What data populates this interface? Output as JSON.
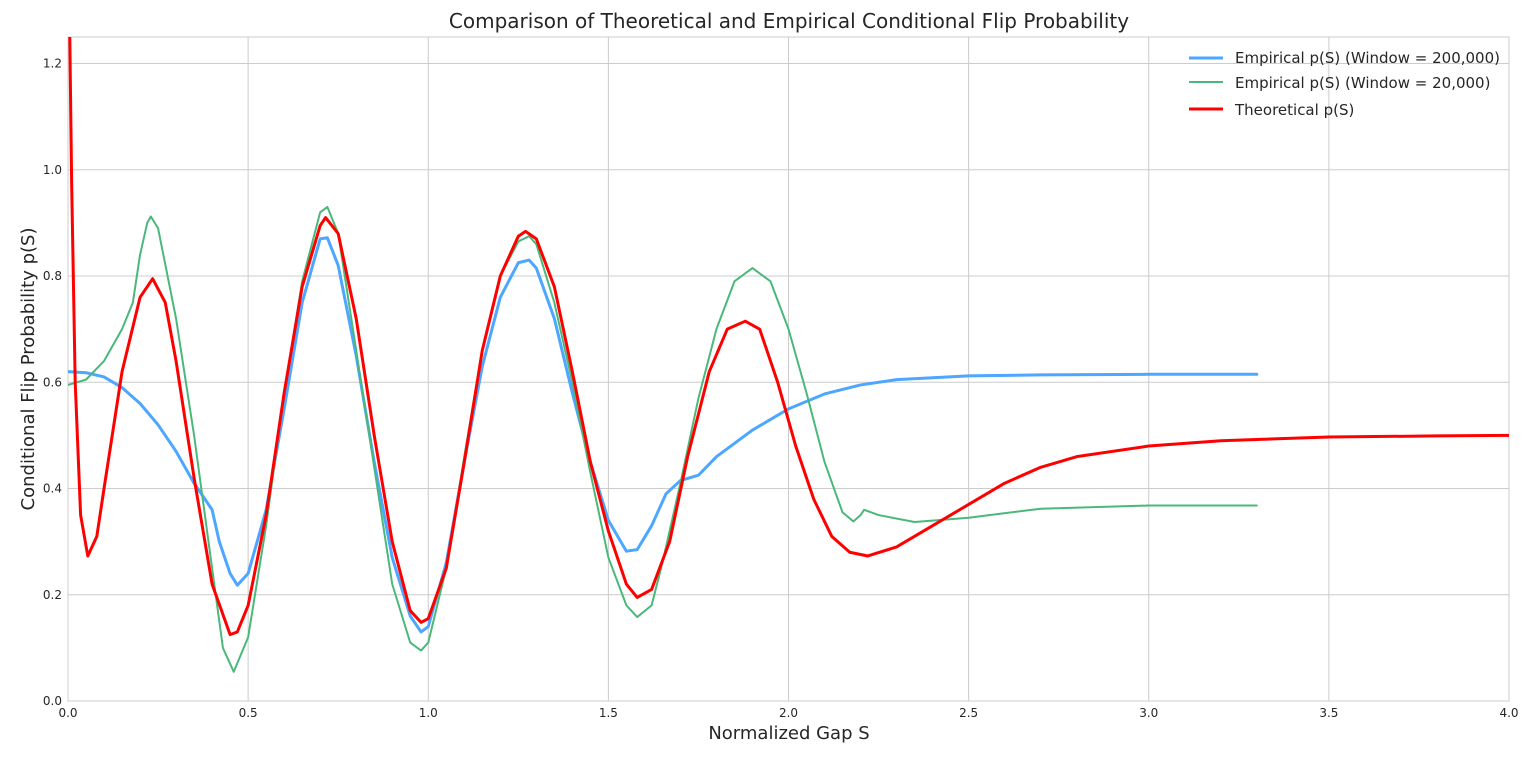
{
  "chart_data": {
    "type": "line",
    "title": "Comparison of Theoretical and Empirical Conditional Flip Probability",
    "xlabel": "Normalized Gap S",
    "ylabel": "Conditional Flip Probability p(S)",
    "xlim": [
      0.0,
      4.0
    ],
    "ylim": [
      0.0,
      1.25
    ],
    "xticks": [
      "0.0",
      "0.5",
      "1.0",
      "1.5",
      "2.0",
      "2.5",
      "3.0",
      "3.5",
      "4.0"
    ],
    "yticks": [
      "0.0",
      "0.2",
      "0.4",
      "0.6",
      "0.8",
      "1.0",
      "1.2"
    ],
    "grid": true,
    "legend_position": "top-right",
    "series": [
      {
        "name": "Empirical p(S) (Window = 200,000)",
        "color": "#4da6ff",
        "points": [
          [
            0.0,
            0.62
          ],
          [
            0.05,
            0.618
          ],
          [
            0.1,
            0.61
          ],
          [
            0.15,
            0.59
          ],
          [
            0.2,
            0.56
          ],
          [
            0.25,
            0.52
          ],
          [
            0.3,
            0.47
          ],
          [
            0.35,
            0.41
          ],
          [
            0.38,
            0.38
          ],
          [
            0.4,
            0.36
          ],
          [
            0.42,
            0.3
          ],
          [
            0.45,
            0.24
          ],
          [
            0.47,
            0.218
          ],
          [
            0.5,
            0.24
          ],
          [
            0.55,
            0.36
          ],
          [
            0.6,
            0.55
          ],
          [
            0.65,
            0.75
          ],
          [
            0.7,
            0.87
          ],
          [
            0.72,
            0.872
          ],
          [
            0.75,
            0.82
          ],
          [
            0.8,
            0.65
          ],
          [
            0.85,
            0.45
          ],
          [
            0.9,
            0.27
          ],
          [
            0.95,
            0.16
          ],
          [
            0.98,
            0.13
          ],
          [
            1.0,
            0.14
          ],
          [
            1.05,
            0.26
          ],
          [
            1.1,
            0.45
          ],
          [
            1.15,
            0.63
          ],
          [
            1.2,
            0.76
          ],
          [
            1.25,
            0.825
          ],
          [
            1.28,
            0.83
          ],
          [
            1.3,
            0.815
          ],
          [
            1.35,
            0.72
          ],
          [
            1.4,
            0.58
          ],
          [
            1.45,
            0.45
          ],
          [
            1.5,
            0.34
          ],
          [
            1.55,
            0.282
          ],
          [
            1.58,
            0.285
          ],
          [
            1.62,
            0.33
          ],
          [
            1.66,
            0.39
          ],
          [
            1.7,
            0.415
          ],
          [
            1.75,
            0.425
          ],
          [
            1.8,
            0.46
          ],
          [
            1.9,
            0.51
          ],
          [
            2.0,
            0.55
          ],
          [
            2.1,
            0.578
          ],
          [
            2.2,
            0.595
          ],
          [
            2.3,
            0.605
          ],
          [
            2.5,
            0.612
          ],
          [
            2.7,
            0.614
          ],
          [
            3.0,
            0.615
          ],
          [
            3.3,
            0.615
          ]
        ]
      },
      {
        "name": "Empirical p(S) (Window = 20,000)",
        "color": "#4ab87a",
        "points": [
          [
            0.0,
            0.595
          ],
          [
            0.05,
            0.605
          ],
          [
            0.1,
            0.64
          ],
          [
            0.15,
            0.7
          ],
          [
            0.18,
            0.75
          ],
          [
            0.2,
            0.84
          ],
          [
            0.22,
            0.9
          ],
          [
            0.23,
            0.912
          ],
          [
            0.25,
            0.89
          ],
          [
            0.3,
            0.72
          ],
          [
            0.35,
            0.5
          ],
          [
            0.4,
            0.25
          ],
          [
            0.43,
            0.1
          ],
          [
            0.46,
            0.055
          ],
          [
            0.5,
            0.12
          ],
          [
            0.55,
            0.33
          ],
          [
            0.6,
            0.58
          ],
          [
            0.65,
            0.79
          ],
          [
            0.7,
            0.92
          ],
          [
            0.72,
            0.93
          ],
          [
            0.75,
            0.88
          ],
          [
            0.8,
            0.66
          ],
          [
            0.85,
            0.44
          ],
          [
            0.9,
            0.22
          ],
          [
            0.95,
            0.11
          ],
          [
            0.98,
            0.095
          ],
          [
            1.0,
            0.11
          ],
          [
            1.05,
            0.25
          ],
          [
            1.1,
            0.46
          ],
          [
            1.15,
            0.66
          ],
          [
            1.2,
            0.8
          ],
          [
            1.25,
            0.865
          ],
          [
            1.28,
            0.875
          ],
          [
            1.3,
            0.86
          ],
          [
            1.35,
            0.75
          ],
          [
            1.4,
            0.6
          ],
          [
            1.45,
            0.43
          ],
          [
            1.5,
            0.27
          ],
          [
            1.55,
            0.18
          ],
          [
            1.58,
            0.158
          ],
          [
            1.62,
            0.18
          ],
          [
            1.65,
            0.26
          ],
          [
            1.7,
            0.41
          ],
          [
            1.75,
            0.57
          ],
          [
            1.8,
            0.7
          ],
          [
            1.85,
            0.79
          ],
          [
            1.9,
            0.815
          ],
          [
            1.95,
            0.79
          ],
          [
            2.0,
            0.7
          ],
          [
            2.05,
            0.58
          ],
          [
            2.1,
            0.45
          ],
          [
            2.15,
            0.355
          ],
          [
            2.18,
            0.338
          ],
          [
            2.2,
            0.35
          ],
          [
            2.21,
            0.36
          ],
          [
            2.25,
            0.35
          ],
          [
            2.35,
            0.337
          ],
          [
            2.5,
            0.345
          ],
          [
            2.7,
            0.362
          ],
          [
            3.0,
            0.368
          ],
          [
            3.3,
            0.368
          ]
        ]
      },
      {
        "name": "Theoretical p(S)",
        "color": "#ff0000",
        "points": [
          [
            0.005,
            1.25
          ],
          [
            0.01,
            0.98
          ],
          [
            0.02,
            0.6
          ],
          [
            0.035,
            0.35
          ],
          [
            0.055,
            0.273
          ],
          [
            0.08,
            0.31
          ],
          [
            0.1,
            0.4
          ],
          [
            0.15,
            0.62
          ],
          [
            0.2,
            0.76
          ],
          [
            0.235,
            0.795
          ],
          [
            0.27,
            0.75
          ],
          [
            0.3,
            0.64
          ],
          [
            0.35,
            0.42
          ],
          [
            0.4,
            0.22
          ],
          [
            0.45,
            0.125
          ],
          [
            0.47,
            0.13
          ],
          [
            0.5,
            0.18
          ],
          [
            0.55,
            0.35
          ],
          [
            0.6,
            0.58
          ],
          [
            0.65,
            0.78
          ],
          [
            0.7,
            0.895
          ],
          [
            0.715,
            0.91
          ],
          [
            0.75,
            0.88
          ],
          [
            0.8,
            0.72
          ],
          [
            0.85,
            0.5
          ],
          [
            0.9,
            0.3
          ],
          [
            0.95,
            0.17
          ],
          [
            0.98,
            0.148
          ],
          [
            1.0,
            0.155
          ],
          [
            1.05,
            0.25
          ],
          [
            1.1,
            0.45
          ],
          [
            1.15,
            0.66
          ],
          [
            1.2,
            0.8
          ],
          [
            1.25,
            0.875
          ],
          [
            1.27,
            0.884
          ],
          [
            1.3,
            0.87
          ],
          [
            1.35,
            0.78
          ],
          [
            1.4,
            0.62
          ],
          [
            1.45,
            0.45
          ],
          [
            1.5,
            0.32
          ],
          [
            1.55,
            0.22
          ],
          [
            1.58,
            0.195
          ],
          [
            1.62,
            0.21
          ],
          [
            1.67,
            0.3
          ],
          [
            1.72,
            0.46
          ],
          [
            1.78,
            0.62
          ],
          [
            1.83,
            0.7
          ],
          [
            1.88,
            0.715
          ],
          [
            1.92,
            0.7
          ],
          [
            1.97,
            0.6
          ],
          [
            2.02,
            0.48
          ],
          [
            2.07,
            0.38
          ],
          [
            2.12,
            0.31
          ],
          [
            2.17,
            0.28
          ],
          [
            2.22,
            0.273
          ],
          [
            2.3,
            0.29
          ],
          [
            2.4,
            0.33
          ],
          [
            2.5,
            0.37
          ],
          [
            2.6,
            0.41
          ],
          [
            2.7,
            0.44
          ],
          [
            2.8,
            0.46
          ],
          [
            3.0,
            0.48
          ],
          [
            3.2,
            0.49
          ],
          [
            3.5,
            0.497
          ],
          [
            3.8,
            0.499
          ],
          [
            4.0,
            0.5
          ]
        ]
      }
    ]
  }
}
